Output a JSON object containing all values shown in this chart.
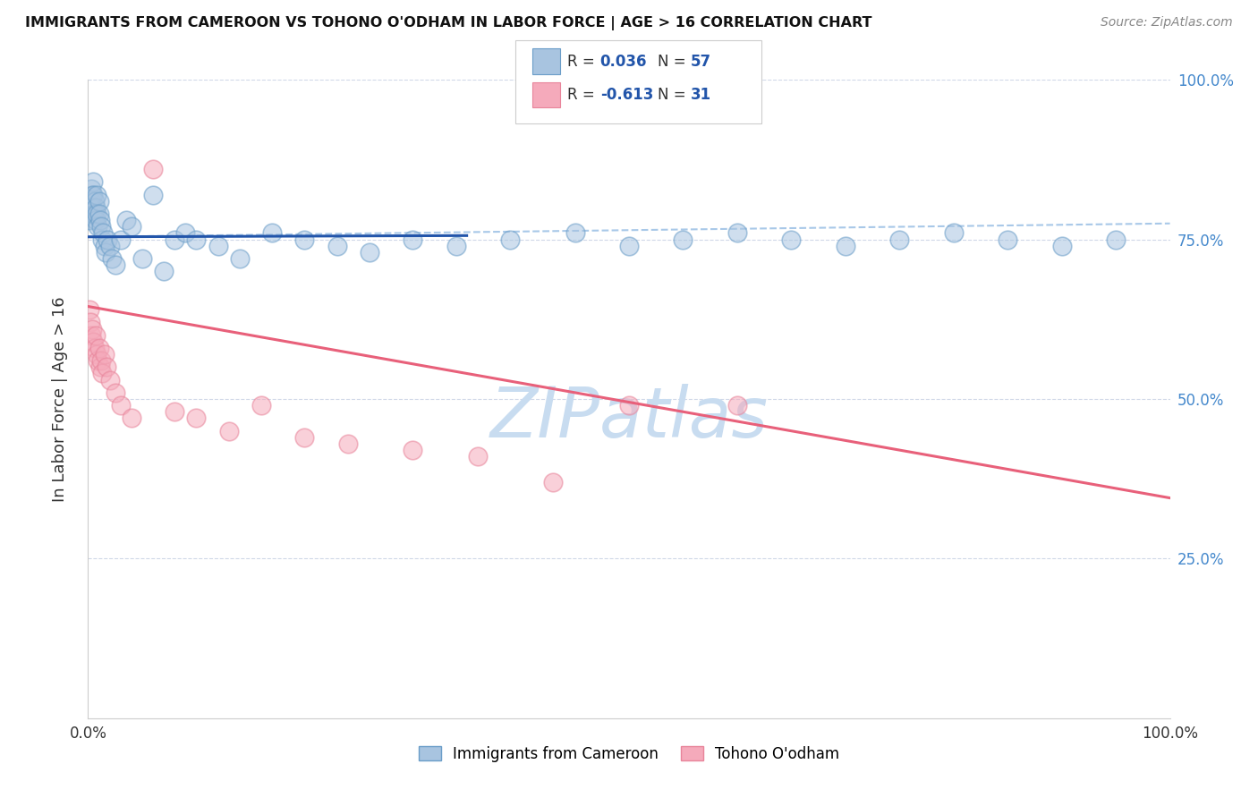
{
  "title": "IMMIGRANTS FROM CAMEROON VS TOHONO O'ODHAM IN LABOR FORCE | AGE > 16 CORRELATION CHART",
  "source": "Source: ZipAtlas.com",
  "ylabel": "In Labor Force | Age > 16",
  "xlim": [
    0,
    1.0
  ],
  "ylim": [
    0,
    1.0
  ],
  "ytick_positions_right": [
    1.0,
    0.75,
    0.5,
    0.25
  ],
  "ytick_labels_right": [
    "100.0%",
    "75.0%",
    "50.0%",
    "25.0%"
  ],
  "blue_color": "#A8C4E0",
  "blue_edge_color": "#6A9DC8",
  "pink_color": "#F5AABB",
  "pink_edge_color": "#E8849A",
  "blue_line_color": "#2255AA",
  "pink_line_color": "#E8607A",
  "dashed_line_color": "#A8C8E8",
  "watermark_color": "#C8DCF0",
  "grid_color": "#D0D8E8",
  "blue_scatter_x": [
    0.001,
    0.002,
    0.003,
    0.003,
    0.004,
    0.004,
    0.005,
    0.005,
    0.005,
    0.006,
    0.006,
    0.007,
    0.007,
    0.008,
    0.008,
    0.009,
    0.01,
    0.01,
    0.011,
    0.012,
    0.013,
    0.014,
    0.015,
    0.016,
    0.018,
    0.02,
    0.022,
    0.025,
    0.03,
    0.035,
    0.04,
    0.05,
    0.06,
    0.07,
    0.08,
    0.09,
    0.1,
    0.12,
    0.14,
    0.17,
    0.2,
    0.23,
    0.26,
    0.3,
    0.34,
    0.39,
    0.45,
    0.5,
    0.55,
    0.6,
    0.65,
    0.7,
    0.75,
    0.8,
    0.85,
    0.9,
    0.95
  ],
  "blue_scatter_y": [
    0.78,
    0.8,
    0.83,
    0.81,
    0.82,
    0.8,
    0.84,
    0.82,
    0.79,
    0.81,
    0.79,
    0.8,
    0.78,
    0.82,
    0.79,
    0.77,
    0.81,
    0.79,
    0.78,
    0.77,
    0.75,
    0.76,
    0.74,
    0.73,
    0.75,
    0.74,
    0.72,
    0.71,
    0.75,
    0.78,
    0.77,
    0.72,
    0.82,
    0.7,
    0.75,
    0.76,
    0.75,
    0.74,
    0.72,
    0.76,
    0.75,
    0.74,
    0.73,
    0.75,
    0.74,
    0.75,
    0.76,
    0.74,
    0.75,
    0.76,
    0.75,
    0.74,
    0.75,
    0.76,
    0.75,
    0.74,
    0.75
  ],
  "pink_scatter_x": [
    0.001,
    0.002,
    0.003,
    0.004,
    0.005,
    0.006,
    0.007,
    0.008,
    0.009,
    0.01,
    0.011,
    0.012,
    0.013,
    0.015,
    0.017,
    0.02,
    0.025,
    0.03,
    0.04,
    0.06,
    0.08,
    0.1,
    0.13,
    0.16,
    0.2,
    0.24,
    0.3,
    0.36,
    0.43,
    0.5,
    0.6
  ],
  "pink_scatter_y": [
    0.64,
    0.62,
    0.6,
    0.61,
    0.59,
    0.58,
    0.6,
    0.57,
    0.56,
    0.58,
    0.55,
    0.56,
    0.54,
    0.57,
    0.55,
    0.53,
    0.51,
    0.49,
    0.47,
    0.86,
    0.48,
    0.47,
    0.45,
    0.49,
    0.44,
    0.43,
    0.42,
    0.41,
    0.37,
    0.49,
    0.49
  ],
  "blue_line_x0": 0.0,
  "blue_line_x1": 0.35,
  "blue_line_y0": 0.754,
  "blue_line_y1": 0.756,
  "dashed_line_x0": 0.0,
  "dashed_line_x1": 1.0,
  "dashed_line_y0": 0.754,
  "dashed_line_y1": 0.775,
  "pink_line_x0": 0.0,
  "pink_line_x1": 1.0,
  "pink_line_y0": 0.645,
  "pink_line_y1": 0.345
}
